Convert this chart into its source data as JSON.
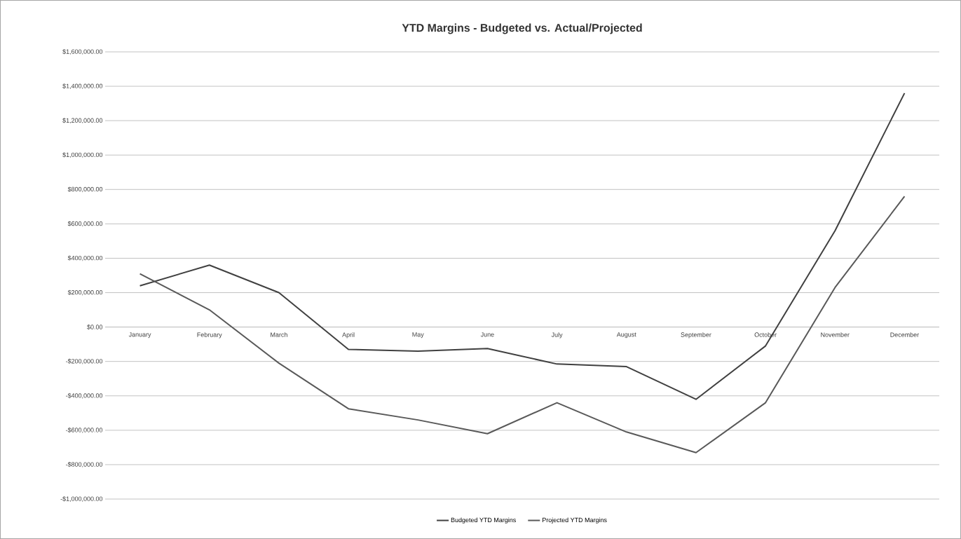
{
  "chart_data": {
    "type": "line",
    "title": "YTD Margins - Budgeted vs. Actual/Projected",
    "categories": [
      "January",
      "February",
      "March",
      "April",
      "May",
      "June",
      "July",
      "August",
      "September",
      "October",
      "November",
      "December"
    ],
    "series": [
      {
        "name": "Budgeted YTD Margins",
        "color": "#404040",
        "values": [
          240000,
          360000,
          200000,
          -130000,
          -140000,
          -125000,
          -215000,
          -230000,
          -420000,
          -110000,
          560000,
          1360000
        ]
      },
      {
        "name": "Projected YTD Margins",
        "color": "#595959",
        "values": [
          310000,
          100000,
          -210000,
          -475000,
          -540000,
          -620000,
          -440000,
          -610000,
          -730000,
          -440000,
          230000,
          760000
        ]
      }
    ],
    "ylim": [
      -1000000,
      1600000
    ],
    "yticks": [
      {
        "value": -1000000,
        "label": "-$1,000,000.00"
      },
      {
        "value": -800000,
        "label": "-$800,000.00"
      },
      {
        "value": -600000,
        "label": "-$600,000.00"
      },
      {
        "value": -400000,
        "label": "-$400,000.00"
      },
      {
        "value": -200000,
        "label": "-$200,000.00"
      },
      {
        "value": 0,
        "label": "$0.00"
      },
      {
        "value": 200000,
        "label": "$200,000.00"
      },
      {
        "value": 400000,
        "label": "$400,000.00"
      },
      {
        "value": 600000,
        "label": "$600,000.00"
      },
      {
        "value": 800000,
        "label": "$800,000.00"
      },
      {
        "value": 1000000,
        "label": "$1,000,000.00"
      },
      {
        "value": 1200000,
        "label": "$1,200,000.00"
      },
      {
        "value": 1400000,
        "label": "$1,400,000.00"
      },
      {
        "value": 1600000,
        "label": "$1,600,000.00"
      }
    ],
    "grid": "y",
    "legend": "bottom",
    "marker": "none",
    "line_style": "solid"
  }
}
